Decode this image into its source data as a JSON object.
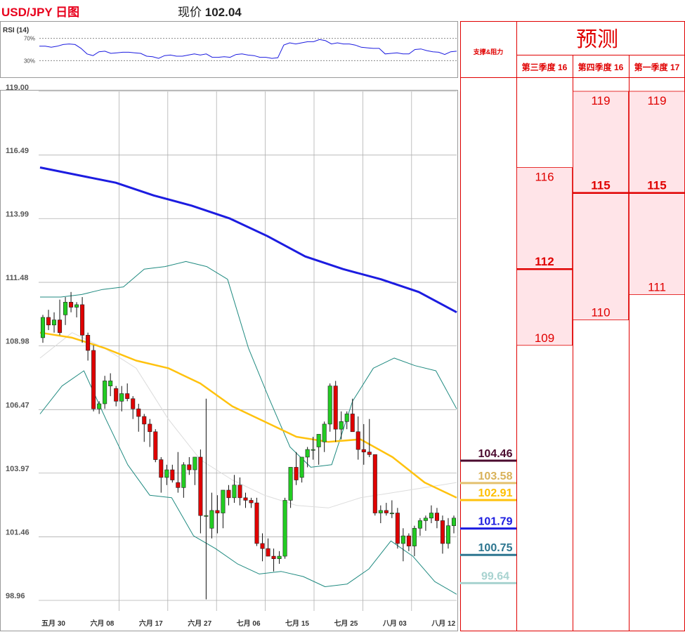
{
  "header": {
    "title": "USD/JPY 日图",
    "price_label": "现价",
    "price_value": "102.04"
  },
  "colors": {
    "candle_up": "#22cc22",
    "candle_down": "#e00000",
    "ma_blue": "#1c1ce0",
    "ma_yellow": "#ffc20e",
    "bollinger": "#1f8a80",
    "panel_border": "#e00000",
    "zone_fill": "#ffe4e8"
  },
  "chart_data": [
    {
      "type": "line",
      "title": "RSI (14)",
      "ylim": [
        0,
        100
      ],
      "y_ticks": [
        "70%",
        "30%"
      ],
      "y_tick_values": [
        70,
        30
      ],
      "series": [
        {
          "values": [
            56,
            56,
            54,
            56,
            59,
            60,
            59,
            52,
            42,
            39,
            46,
            47,
            43,
            44,
            45,
            45,
            44,
            43,
            38,
            37,
            34,
            39,
            40,
            38,
            38,
            40,
            42,
            40,
            42,
            36,
            36,
            37,
            36,
            41,
            42,
            40,
            39,
            36,
            36,
            34,
            35,
            58,
            62,
            60,
            62,
            64,
            64,
            68,
            66,
            60,
            62,
            60,
            60,
            58,
            54,
            53,
            52,
            52,
            42,
            43,
            44,
            42,
            42,
            50,
            51,
            48,
            46,
            45,
            41,
            46,
            47
          ]
        }
      ]
    },
    {
      "type": "candlestick",
      "ylim": [
        98.96,
        119.0
      ],
      "y_ticks": [
        "119.00",
        "116.49",
        "113.99",
        "111.48",
        "108.98",
        "106.47",
        "103.97",
        "101.46",
        "98.96"
      ],
      "y_tick_values": [
        119.0,
        116.49,
        113.99,
        111.48,
        108.98,
        106.47,
        103.97,
        101.46,
        98.96
      ],
      "x_labels": [
        "五月 30",
        "六月 08",
        "六月 17",
        "六月 27",
        "七月 06",
        "七月 15",
        "七月 25",
        "八月 03",
        "八月 12"
      ],
      "candles": [
        [
          109.3,
          110.2,
          109.1,
          110.1
        ],
        [
          110.1,
          110.4,
          109.6,
          109.8
        ],
        [
          109.8,
          110.3,
          109.5,
          110.0
        ],
        [
          110.0,
          110.8,
          109.4,
          109.5
        ],
        [
          110.2,
          110.9,
          109.8,
          110.7
        ],
        [
          110.7,
          111.1,
          110.3,
          110.5
        ],
        [
          110.5,
          110.7,
          110.1,
          110.6
        ],
        [
          110.6,
          110.9,
          109.1,
          109.4
        ],
        [
          109.4,
          109.5,
          108.4,
          108.8
        ],
        [
          108.8,
          109.0,
          106.4,
          106.5
        ],
        [
          106.5,
          106.8,
          106.3,
          106.7
        ],
        [
          106.7,
          107.8,
          106.5,
          107.6
        ],
        [
          107.4,
          107.9,
          107.0,
          107.6
        ],
        [
          107.3,
          107.4,
          106.6,
          106.8
        ],
        [
          106.8,
          107.4,
          106.4,
          107.1
        ],
        [
          107.1,
          107.5,
          106.8,
          106.9
        ],
        [
          106.9,
          107.0,
          106.1,
          106.5
        ],
        [
          106.5,
          106.7,
          105.6,
          106.2
        ],
        [
          106.2,
          106.3,
          105.2,
          105.9
        ],
        [
          105.9,
          106.1,
          105.0,
          105.6
        ],
        [
          105.6,
          105.7,
          104.4,
          104.5
        ],
        [
          104.5,
          104.6,
          103.2,
          103.8
        ],
        [
          103.8,
          104.3,
          103.5,
          104.1
        ],
        [
          104.1,
          104.3,
          103.6,
          103.7
        ],
        [
          103.6,
          104.8,
          103.2,
          103.4
        ],
        [
          103.4,
          104.4,
          103.0,
          104.3
        ],
        [
          104.3,
          104.6,
          103.9,
          104.1
        ],
        [
          104.1,
          104.6,
          103.5,
          104.6
        ],
        [
          104.6,
          104.9,
          101.6,
          102.3
        ],
        [
          102.3,
          106.9,
          99.0,
          102.3
        ],
        [
          101.8,
          103.2,
          101.4,
          102.5
        ],
        [
          102.5,
          103.1,
          101.6,
          102.4
        ],
        [
          102.4,
          103.3,
          101.8,
          103.3
        ],
        [
          103.3,
          103.5,
          102.7,
          103.0
        ],
        [
          103.0,
          103.9,
          102.8,
          103.5
        ],
        [
          103.5,
          103.8,
          102.7,
          103.0
        ],
        [
          103.0,
          103.2,
          102.6,
          102.9
        ],
        [
          102.9,
          103.0,
          102.6,
          102.8
        ],
        [
          102.8,
          103.0,
          101.1,
          101.2
        ],
        [
          101.2,
          101.6,
          100.5,
          101.0
        ],
        [
          101.0,
          101.4,
          100.8,
          100.7
        ],
        [
          100.7,
          101.0,
          100.1,
          100.6
        ],
        [
          100.6,
          100.9,
          100.4,
          100.7
        ],
        [
          100.7,
          103.0,
          100.6,
          102.9
        ],
        [
          102.9,
          104.2,
          102.6,
          104.2
        ],
        [
          104.2,
          104.8,
          103.5,
          103.7
        ],
        [
          103.8,
          104.6,
          103.6,
          104.6
        ],
        [
          104.6,
          105.0,
          104.2,
          104.9
        ],
        [
          104.9,
          105.4,
          104.5,
          104.9
        ],
        [
          105.0,
          105.4,
          104.3,
          105.5
        ],
        [
          105.2,
          106.0,
          104.8,
          105.9
        ],
        [
          105.9,
          107.5,
          105.6,
          107.4
        ],
        [
          107.4,
          107.6,
          105.2,
          105.7
        ],
        [
          105.7,
          106.4,
          105.3,
          106.0
        ],
        [
          106.0,
          106.4,
          105.7,
          106.3
        ],
        [
          106.3,
          106.9,
          105.8,
          105.6
        ],
        [
          105.6,
          106.2,
          104.5,
          104.9
        ],
        [
          104.9,
          105.9,
          104.3,
          104.8
        ],
        [
          104.8,
          106.1,
          104.6,
          104.7
        ],
        [
          104.7,
          104.7,
          102.3,
          102.4
        ],
        [
          102.4,
          102.7,
          102.0,
          102.5
        ],
        [
          102.5,
          102.8,
          102.3,
          102.4
        ],
        [
          102.4,
          102.9,
          102.2,
          102.4
        ],
        [
          102.4,
          102.6,
          101.0,
          101.2
        ],
        [
          101.2,
          101.8,
          100.5,
          101.5
        ],
        [
          101.5,
          101.6,
          100.9,
          101.1
        ],
        [
          101.1,
          101.9,
          100.7,
          101.8
        ],
        [
          101.8,
          102.2,
          101.5,
          102.1
        ],
        [
          102.1,
          102.3,
          101.7,
          102.2
        ],
        [
          102.2,
          102.7,
          102.0,
          102.4
        ],
        [
          102.4,
          102.6,
          101.8,
          102.1
        ],
        [
          102.1,
          102.3,
          100.8,
          101.2
        ],
        [
          101.2,
          102.2,
          101.0,
          101.9
        ],
        [
          101.9,
          102.3,
          101.6,
          102.2
        ]
      ],
      "ma_long_blue": [
        116.0,
        115.7,
        115.4,
        114.9,
        114.5,
        114.0,
        113.3,
        112.5,
        112.0,
        111.6,
        111.1,
        110.3
      ],
      "ma_short_yellow": [
        109.5,
        109.3,
        108.9,
        108.4,
        108.1,
        107.5,
        106.6,
        106.0,
        105.4,
        105.2,
        105.3,
        104.6,
        103.6,
        103.0
      ],
      "ma_light_gray": [
        108.5,
        109.5,
        108.9,
        108.1,
        106.1,
        104.5,
        103.7,
        103.1,
        102.7,
        102.6,
        103.0,
        103.2,
        103.4,
        103.6
      ],
      "bollinger_upper": [
        110.9,
        110.9,
        111.0,
        111.2,
        111.3,
        112.0,
        112.1,
        112.3,
        112.1,
        111.6,
        108.9,
        106.9,
        105.0,
        104.2,
        104.3,
        106.8,
        108.1,
        108.5,
        108.2,
        108.0,
        106.5
      ],
      "bollinger_lower": [
        106.3,
        107.4,
        108.0,
        106.1,
        104.3,
        103.1,
        103.0,
        101.5,
        101.0,
        100.4,
        100.0,
        100.1,
        99.9,
        99.5,
        99.6,
        100.2,
        101.3,
        100.7,
        99.7,
        99.2
      ]
    }
  ],
  "levels": [
    {
      "value": "104.46",
      "color": "#4b0a2e",
      "text_color": "#4b0a2e"
    },
    {
      "value": "103.58",
      "color": "#e3c16f",
      "text_color": "#d9b25a"
    },
    {
      "value": "102.91",
      "color": "#ffc20e",
      "text_color": "#ffbf00"
    },
    {
      "value": "101.79",
      "color": "#1c1ce0",
      "text_color": "#1c1ce0"
    },
    {
      "value": "100.75",
      "color": "#2d7690",
      "text_color": "#2d7690"
    },
    {
      "value": "99.64",
      "color": "#a8d3d0",
      "text_color": "#a8d3d0"
    }
  ],
  "panel": {
    "support_label": "支撑&阻力",
    "forecast_title": "预测",
    "columns": [
      {
        "header": "第三季度 16",
        "high": "116",
        "mid": "112",
        "low": "109"
      },
      {
        "header": "第四季度 16",
        "high": "119",
        "mid": "115",
        "low": "110"
      },
      {
        "header": "第一季度 17",
        "high": "119",
        "mid": "115",
        "low": "111"
      }
    ]
  }
}
